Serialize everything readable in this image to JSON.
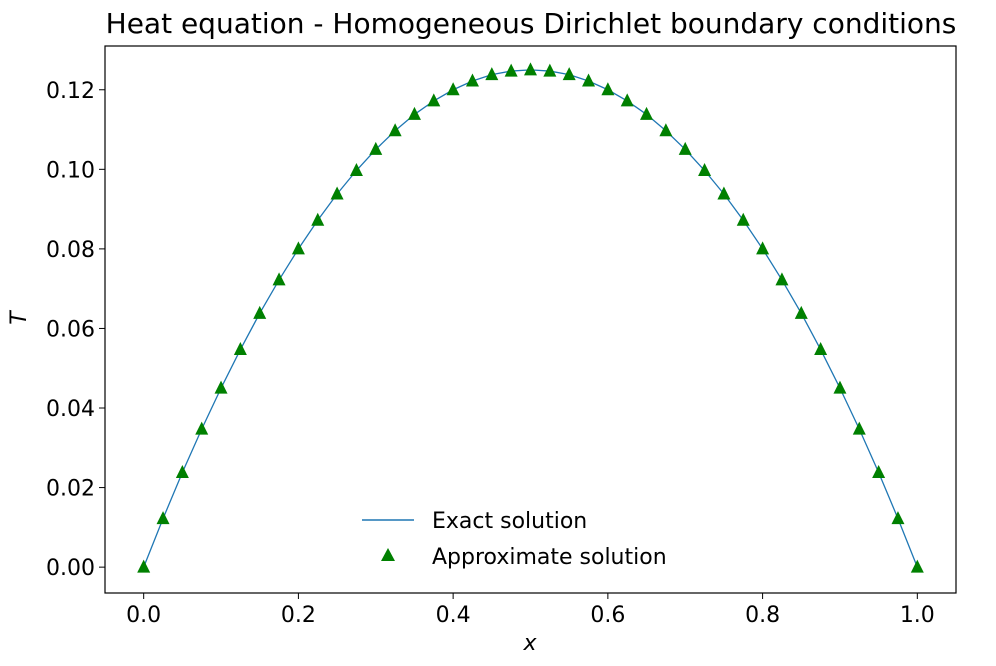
{
  "chart_data": {
    "type": "line",
    "title": "Heat equation - Homogeneous Dirichlet boundary conditions",
    "xlabel": "x",
    "ylabel": "T",
    "xlim": [
      -0.05,
      1.05
    ],
    "ylim": [
      -0.0065,
      0.131
    ],
    "xticks": [
      0.0,
      0.2,
      0.4,
      0.6,
      0.8,
      1.0
    ],
    "xtick_labels": [
      "0.0",
      "0.2",
      "0.4",
      "0.6",
      "0.8",
      "1.0"
    ],
    "yticks": [
      0.0,
      0.02,
      0.04,
      0.06,
      0.08,
      0.1,
      0.12
    ],
    "ytick_labels": [
      "0.00",
      "0.02",
      "0.04",
      "0.06",
      "0.08",
      "0.10",
      "0.12"
    ],
    "grid": false,
    "legend_position": "bottom-center",
    "series": [
      {
        "name": "Exact solution",
        "kind": "line",
        "color": "#1f77b4",
        "x": [
          0,
          0.025,
          0.05,
          0.075,
          0.1,
          0.125,
          0.15,
          0.175,
          0.2,
          0.225,
          0.25,
          0.275,
          0.3,
          0.325,
          0.35,
          0.375,
          0.4,
          0.425,
          0.45,
          0.475,
          0.5,
          0.525,
          0.55,
          0.575,
          0.6,
          0.625,
          0.65,
          0.675,
          0.7,
          0.725,
          0.75,
          0.775,
          0.8,
          0.825,
          0.85,
          0.875,
          0.9,
          0.925,
          0.95,
          0.975,
          1.0
        ],
        "y": [
          0.0,
          0.0122,
          0.0238,
          0.0347,
          0.045,
          0.0547,
          0.0638,
          0.0722,
          0.08,
          0.0872,
          0.0938,
          0.0997,
          0.105,
          0.1097,
          0.1138,
          0.1172,
          0.12,
          0.1222,
          0.1238,
          0.1247,
          0.125,
          0.1247,
          0.1238,
          0.1222,
          0.12,
          0.1172,
          0.1138,
          0.1097,
          0.105,
          0.0997,
          0.0938,
          0.0872,
          0.08,
          0.0722,
          0.0638,
          0.0547,
          0.045,
          0.0347,
          0.0238,
          0.0122,
          0.0
        ]
      },
      {
        "name": "Approximate solution",
        "kind": "scatter",
        "marker": "triangle-up",
        "color": "#008000",
        "x": [
          0,
          0.025,
          0.05,
          0.075,
          0.1,
          0.125,
          0.15,
          0.175,
          0.2,
          0.225,
          0.25,
          0.275,
          0.3,
          0.325,
          0.35,
          0.375,
          0.4,
          0.425,
          0.45,
          0.475,
          0.5,
          0.525,
          0.55,
          0.575,
          0.6,
          0.625,
          0.65,
          0.675,
          0.7,
          0.725,
          0.75,
          0.775,
          0.8,
          0.825,
          0.85,
          0.875,
          0.9,
          0.925,
          0.95,
          0.975,
          1.0
        ],
        "y": [
          0.0,
          0.0122,
          0.0238,
          0.0347,
          0.045,
          0.0547,
          0.0638,
          0.0722,
          0.08,
          0.0872,
          0.0938,
          0.0997,
          0.105,
          0.1097,
          0.1138,
          0.1172,
          0.12,
          0.1222,
          0.1238,
          0.1247,
          0.125,
          0.1247,
          0.1238,
          0.1222,
          0.12,
          0.1172,
          0.1138,
          0.1097,
          0.105,
          0.0997,
          0.0938,
          0.0872,
          0.08,
          0.0722,
          0.0638,
          0.0547,
          0.045,
          0.0347,
          0.0238,
          0.0122,
          0.0
        ]
      }
    ]
  }
}
